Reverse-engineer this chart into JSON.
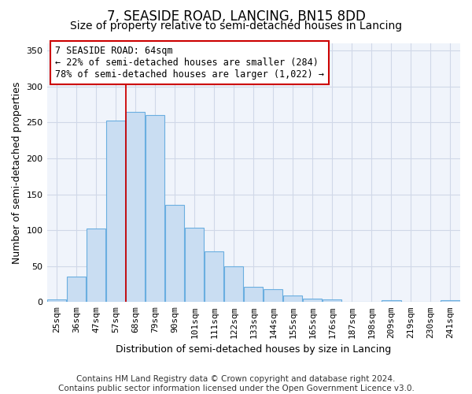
{
  "title": "7, SEASIDE ROAD, LANCING, BN15 8DD",
  "subtitle": "Size of property relative to semi-detached houses in Lancing",
  "xlabel": "Distribution of semi-detached houses by size in Lancing",
  "ylabel": "Number of semi-detached properties",
  "bar_labels": [
    "25sqm",
    "36sqm",
    "47sqm",
    "57sqm",
    "68sqm",
    "79sqm",
    "90sqm",
    "101sqm",
    "111sqm",
    "122sqm",
    "133sqm",
    "144sqm",
    "155sqm",
    "165sqm",
    "176sqm",
    "187sqm",
    "198sqm",
    "209sqm",
    "219sqm",
    "230sqm",
    "241sqm"
  ],
  "bar_values": [
    4,
    35,
    102,
    253,
    265,
    260,
    135,
    103,
    70,
    50,
    21,
    18,
    9,
    5,
    4,
    0,
    0,
    2,
    0,
    0,
    2
  ],
  "bar_color": "#c9ddf2",
  "bar_edge_color": "#6aaee0",
  "vline_color": "#cc0000",
  "annotation_text": "7 SEASIDE ROAD: 64sqm\n← 22% of semi-detached houses are smaller (284)\n78% of semi-detached houses are larger (1,022) →",
  "annotation_box_facecolor": "white",
  "annotation_box_edgecolor": "#cc0000",
  "ylim": [
    0,
    360
  ],
  "yticks": [
    0,
    50,
    100,
    150,
    200,
    250,
    300,
    350
  ],
  "footnote": "Contains HM Land Registry data © Crown copyright and database right 2024.\nContains public sector information licensed under the Open Government Licence v3.0.",
  "fig_bg_color": "#ffffff",
  "plot_bg_color": "#f0f4fb",
  "grid_color": "#d0d8e8",
  "title_fontsize": 12,
  "subtitle_fontsize": 10,
  "xlabel_fontsize": 9,
  "ylabel_fontsize": 9,
  "tick_fontsize": 8,
  "annotation_fontsize": 8.5,
  "footnote_fontsize": 7.5
}
